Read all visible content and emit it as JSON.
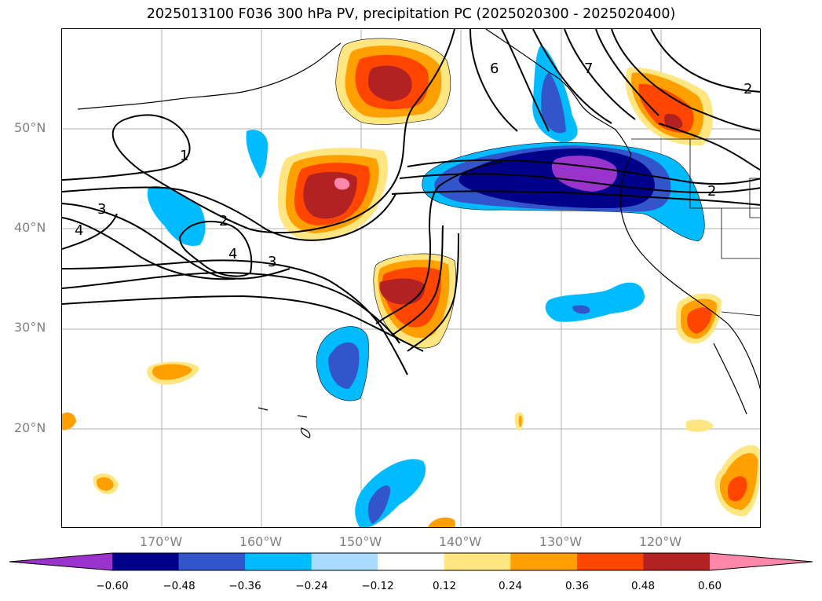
{
  "title": "2025013100 F036 300 hPa PV, precipitation PC (2025020300 - 2025020400)",
  "lat_labels": [
    "50°N",
    "40°N",
    "30°N",
    "20°N"
  ],
  "lon_labels": [
    "170°W",
    "160°W",
    "150°W",
    "140°W",
    "130°W",
    "120°W"
  ],
  "contour_labels": [
    "1",
    "2",
    "3",
    "4",
    "4",
    "3",
    "6",
    "7",
    "2",
    "2"
  ],
  "colorbar": {
    "tick_labels": [
      "−0.60",
      "−0.48",
      "−0.36",
      "−0.24",
      "−0.12",
      "0.12",
      "0.24",
      "0.36",
      "0.48",
      "0.60"
    ],
    "colors": [
      "#9933cc",
      "#00008b",
      "#3355cc",
      "#00bbff",
      "#aadcff",
      "#ffffff",
      "#ffe680",
      "#ffa000",
      "#ff4500",
      "#b22222",
      "#ff88aa"
    ]
  },
  "palette": {
    "grid": "#b0b0b0",
    "coast": "#000000",
    "contour": "#000000",
    "axis_label": "#808080"
  }
}
